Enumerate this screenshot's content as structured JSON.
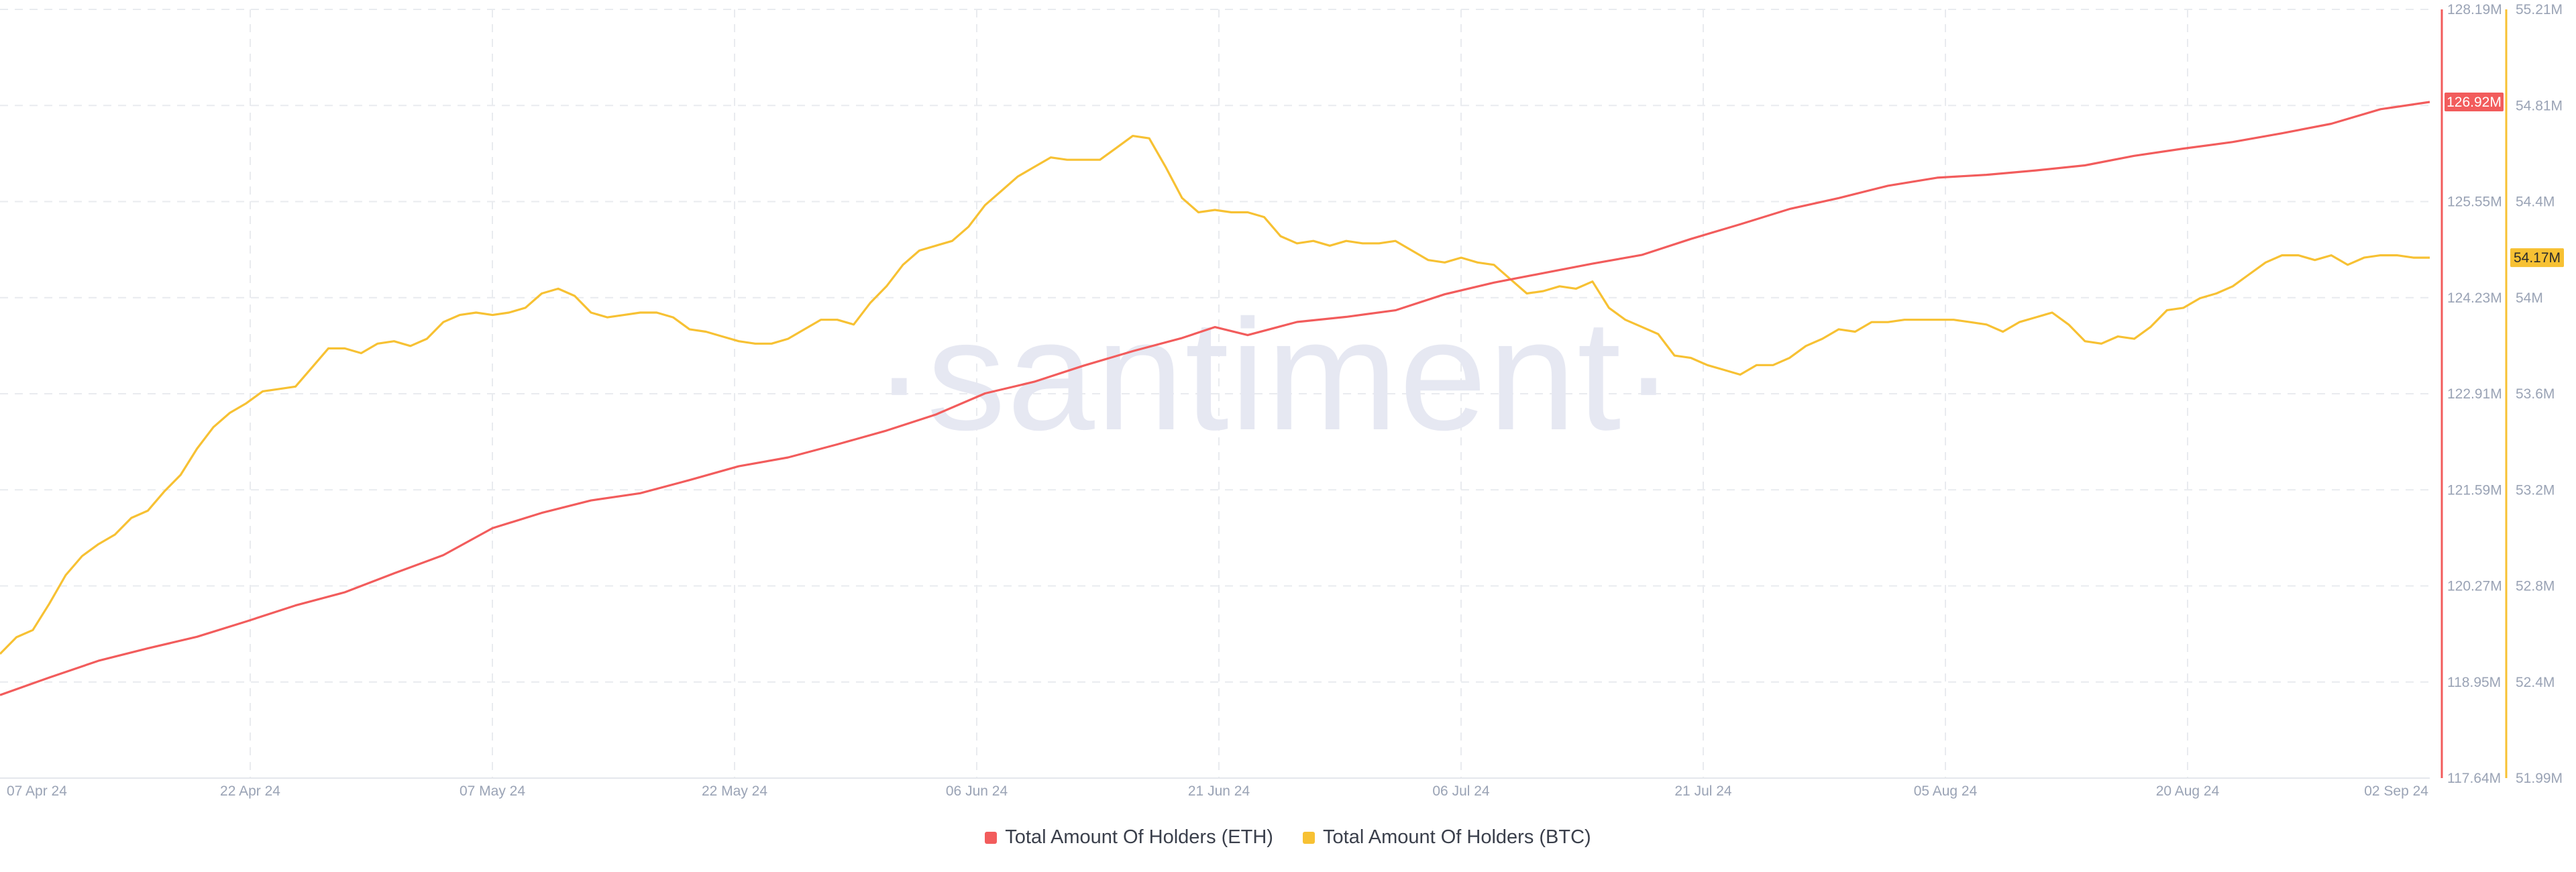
{
  "chart_data": {
    "type": "line",
    "watermark": "·santiment·",
    "colors": {
      "eth": "#f25c5c",
      "btc": "#f7c133"
    },
    "x_ticks": [
      "07 Apr 24",
      "22 Apr 24",
      "07 May 24",
      "22 May 24",
      "06 Jun 24",
      "21 Jun 24",
      "06 Jul 24",
      "21 Jul 24",
      "05 Aug 24",
      "20 Aug 24",
      "02 Sep 24"
    ],
    "y_axis_eth": {
      "ticks": [
        "128.19M",
        "126.92M",
        "125.55M",
        "124.23M",
        "122.91M",
        "121.59M",
        "120.27M",
        "118.95M",
        "117.64M"
      ],
      "ylim": [
        117.64,
        128.19
      ],
      "unit": "M"
    },
    "y_axis_btc": {
      "ticks": [
        "55.21M",
        "54.81M",
        "54.4M",
        "54M",
        "53.6M",
        "53.2M",
        "52.8M",
        "52.4M",
        "51.99M"
      ],
      "ylim": [
        51.99,
        55.21
      ],
      "unit": "M"
    },
    "x_range": [
      "2024-04-07",
      "2024-09-02"
    ],
    "series": [
      {
        "name": "Total Amount Of Holders (ETH)",
        "axis": "left",
        "last_label": "126.92M",
        "points": [
          [
            "2024-04-07",
            118.78
          ],
          [
            "2024-04-10",
            119.02
          ],
          [
            "2024-04-13",
            119.25
          ],
          [
            "2024-04-16",
            119.42
          ],
          [
            "2024-04-19",
            119.58
          ],
          [
            "2024-04-22",
            119.79
          ],
          [
            "2024-04-25",
            120.01
          ],
          [
            "2024-04-28",
            120.19
          ],
          [
            "2024-05-01",
            120.45
          ],
          [
            "2024-05-04",
            120.7
          ],
          [
            "2024-05-07",
            121.07
          ],
          [
            "2024-05-10",
            121.28
          ],
          [
            "2024-05-13",
            121.45
          ],
          [
            "2024-05-16",
            121.55
          ],
          [
            "2024-05-19",
            121.73
          ],
          [
            "2024-05-22",
            121.92
          ],
          [
            "2024-05-25",
            122.04
          ],
          [
            "2024-05-28",
            122.22
          ],
          [
            "2024-05-31",
            122.41
          ],
          [
            "2024-06-03",
            122.63
          ],
          [
            "2024-06-06",
            122.92
          ],
          [
            "2024-06-09",
            123.08
          ],
          [
            "2024-06-12",
            123.3
          ],
          [
            "2024-06-15",
            123.5
          ],
          [
            "2024-06-18",
            123.68
          ],
          [
            "2024-06-20",
            123.83
          ],
          [
            "2024-06-22",
            123.72
          ],
          [
            "2024-06-25",
            123.9
          ],
          [
            "2024-06-28",
            123.97
          ],
          [
            "2024-07-01",
            124.06
          ],
          [
            "2024-07-04",
            124.28
          ],
          [
            "2024-07-07",
            124.44
          ],
          [
            "2024-07-10",
            124.57
          ],
          [
            "2024-07-13",
            124.7
          ],
          [
            "2024-07-16",
            124.82
          ],
          [
            "2024-07-19",
            125.04
          ],
          [
            "2024-07-22",
            125.24
          ],
          [
            "2024-07-25",
            125.45
          ],
          [
            "2024-07-28",
            125.6
          ],
          [
            "2024-07-31",
            125.77
          ],
          [
            "2024-08-03",
            125.88
          ],
          [
            "2024-08-06",
            125.92
          ],
          [
            "2024-08-09",
            125.98
          ],
          [
            "2024-08-12",
            126.05
          ],
          [
            "2024-08-15",
            126.18
          ],
          [
            "2024-08-18",
            126.28
          ],
          [
            "2024-08-21",
            126.37
          ],
          [
            "2024-08-24",
            126.49
          ],
          [
            "2024-08-27",
            126.62
          ],
          [
            "2024-08-30",
            126.82
          ],
          [
            "2024-09-02",
            126.92
          ]
        ]
      },
      {
        "name": "Total Amount Of Holders (BTC)",
        "axis": "right",
        "last_label": "54.17M",
        "points": [
          [
            "2024-04-07",
            52.51
          ],
          [
            "2024-04-08",
            52.58
          ],
          [
            "2024-04-09",
            52.61
          ],
          [
            "2024-04-10",
            52.72
          ],
          [
            "2024-04-11",
            52.84
          ],
          [
            "2024-04-12",
            52.92
          ],
          [
            "2024-04-13",
            52.97
          ],
          [
            "2024-04-14",
            53.01
          ],
          [
            "2024-04-15",
            53.08
          ],
          [
            "2024-04-16",
            53.11
          ],
          [
            "2024-04-17",
            53.19
          ],
          [
            "2024-04-18",
            53.26
          ],
          [
            "2024-04-19",
            53.37
          ],
          [
            "2024-04-20",
            53.46
          ],
          [
            "2024-04-21",
            53.52
          ],
          [
            "2024-04-22",
            53.56
          ],
          [
            "2024-04-23",
            53.61
          ],
          [
            "2024-04-24",
            53.62
          ],
          [
            "2024-04-25",
            53.63
          ],
          [
            "2024-04-26",
            53.71
          ],
          [
            "2024-04-27",
            53.79
          ],
          [
            "2024-04-28",
            53.79
          ],
          [
            "2024-04-29",
            53.77
          ],
          [
            "2024-04-30",
            53.81
          ],
          [
            "2024-05-01",
            53.82
          ],
          [
            "2024-05-02",
            53.8
          ],
          [
            "2024-05-03",
            53.83
          ],
          [
            "2024-05-04",
            53.9
          ],
          [
            "2024-05-05",
            53.93
          ],
          [
            "2024-05-06",
            53.94
          ],
          [
            "2024-05-07",
            53.93
          ],
          [
            "2024-05-08",
            53.94
          ],
          [
            "2024-05-09",
            53.96
          ],
          [
            "2024-05-10",
            54.02
          ],
          [
            "2024-05-11",
            54.04
          ],
          [
            "2024-05-12",
            54.01
          ],
          [
            "2024-05-13",
            53.94
          ],
          [
            "2024-05-14",
            53.92
          ],
          [
            "2024-05-15",
            53.93
          ],
          [
            "2024-05-16",
            53.94
          ],
          [
            "2024-05-17",
            53.94
          ],
          [
            "2024-05-18",
            53.92
          ],
          [
            "2024-05-19",
            53.87
          ],
          [
            "2024-05-20",
            53.86
          ],
          [
            "2024-05-21",
            53.84
          ],
          [
            "2024-05-22",
            53.82
          ],
          [
            "2024-05-23",
            53.81
          ],
          [
            "2024-05-24",
            53.81
          ],
          [
            "2024-05-25",
            53.83
          ],
          [
            "2024-05-26",
            53.87
          ],
          [
            "2024-05-27",
            53.91
          ],
          [
            "2024-05-28",
            53.91
          ],
          [
            "2024-05-29",
            53.89
          ],
          [
            "2024-05-30",
            53.98
          ],
          [
            "2024-05-31",
            54.05
          ],
          [
            "2024-06-01",
            54.14
          ],
          [
            "2024-06-02",
            54.2
          ],
          [
            "2024-06-03",
            54.22
          ],
          [
            "2024-06-04",
            54.24
          ],
          [
            "2024-06-05",
            54.3
          ],
          [
            "2024-06-06",
            54.39
          ],
          [
            "2024-06-07",
            54.45
          ],
          [
            "2024-06-08",
            54.51
          ],
          [
            "2024-06-09",
            54.55
          ],
          [
            "2024-06-10",
            54.59
          ],
          [
            "2024-06-11",
            54.58
          ],
          [
            "2024-06-12",
            54.58
          ],
          [
            "2024-06-13",
            54.58
          ],
          [
            "2024-06-14",
            54.63
          ],
          [
            "2024-06-15",
            54.68
          ],
          [
            "2024-06-16",
            54.67
          ],
          [
            "2024-06-17",
            54.55
          ],
          [
            "2024-06-18",
            54.42
          ],
          [
            "2024-06-19",
            54.36
          ],
          [
            "2024-06-20",
            54.37
          ],
          [
            "2024-06-21",
            54.36
          ],
          [
            "2024-06-22",
            54.36
          ],
          [
            "2024-06-23",
            54.34
          ],
          [
            "2024-06-24",
            54.26
          ],
          [
            "2024-06-25",
            54.23
          ],
          [
            "2024-06-26",
            54.24
          ],
          [
            "2024-06-27",
            54.22
          ],
          [
            "2024-06-28",
            54.24
          ],
          [
            "2024-06-29",
            54.23
          ],
          [
            "2024-06-30",
            54.23
          ],
          [
            "2024-07-01",
            54.24
          ],
          [
            "2024-07-02",
            54.2
          ],
          [
            "2024-07-03",
            54.16
          ],
          [
            "2024-07-04",
            54.15
          ],
          [
            "2024-07-05",
            54.17
          ],
          [
            "2024-07-06",
            54.15
          ],
          [
            "2024-07-07",
            54.14
          ],
          [
            "2024-07-08",
            54.08
          ],
          [
            "2024-07-09",
            54.02
          ],
          [
            "2024-07-10",
            54.03
          ],
          [
            "2024-07-11",
            54.05
          ],
          [
            "2024-07-12",
            54.04
          ],
          [
            "2024-07-13",
            54.07
          ],
          [
            "2024-07-14",
            53.96
          ],
          [
            "2024-07-15",
            53.91
          ],
          [
            "2024-07-16",
            53.88
          ],
          [
            "2024-07-17",
            53.85
          ],
          [
            "2024-07-18",
            53.76
          ],
          [
            "2024-07-19",
            53.75
          ],
          [
            "2024-07-20",
            53.72
          ],
          [
            "2024-07-21",
            53.7
          ],
          [
            "2024-07-22",
            53.68
          ],
          [
            "2024-07-23",
            53.72
          ],
          [
            "2024-07-24",
            53.72
          ],
          [
            "2024-07-25",
            53.75
          ],
          [
            "2024-07-26",
            53.8
          ],
          [
            "2024-07-27",
            53.83
          ],
          [
            "2024-07-28",
            53.87
          ],
          [
            "2024-07-29",
            53.86
          ],
          [
            "2024-07-30",
            53.9
          ],
          [
            "2024-07-31",
            53.9
          ],
          [
            "2024-08-01",
            53.91
          ],
          [
            "2024-08-02",
            53.91
          ],
          [
            "2024-08-03",
            53.91
          ],
          [
            "2024-08-04",
            53.91
          ],
          [
            "2024-08-05",
            53.9
          ],
          [
            "2024-08-06",
            53.89
          ],
          [
            "2024-08-07",
            53.86
          ],
          [
            "2024-08-08",
            53.9
          ],
          [
            "2024-08-09",
            53.92
          ],
          [
            "2024-08-10",
            53.94
          ],
          [
            "2024-08-11",
            53.89
          ],
          [
            "2024-08-12",
            53.82
          ],
          [
            "2024-08-13",
            53.81
          ],
          [
            "2024-08-14",
            53.84
          ],
          [
            "2024-08-15",
            53.83
          ],
          [
            "2024-08-16",
            53.88
          ],
          [
            "2024-08-17",
            53.95
          ],
          [
            "2024-08-18",
            53.96
          ],
          [
            "2024-08-19",
            54.0
          ],
          [
            "2024-08-20",
            54.02
          ],
          [
            "2024-08-21",
            54.05
          ],
          [
            "2024-08-22",
            54.1
          ],
          [
            "2024-08-23",
            54.15
          ],
          [
            "2024-08-24",
            54.18
          ],
          [
            "2024-08-25",
            54.18
          ],
          [
            "2024-08-26",
            54.16
          ],
          [
            "2024-08-27",
            54.18
          ],
          [
            "2024-08-28",
            54.14
          ],
          [
            "2024-08-29",
            54.17
          ],
          [
            "2024-08-30",
            54.18
          ],
          [
            "2024-08-31",
            54.18
          ],
          [
            "2024-09-01",
            54.17
          ],
          [
            "2024-09-02",
            54.17
          ]
        ]
      }
    ],
    "legend_position": "bottom-center",
    "grid": true
  }
}
